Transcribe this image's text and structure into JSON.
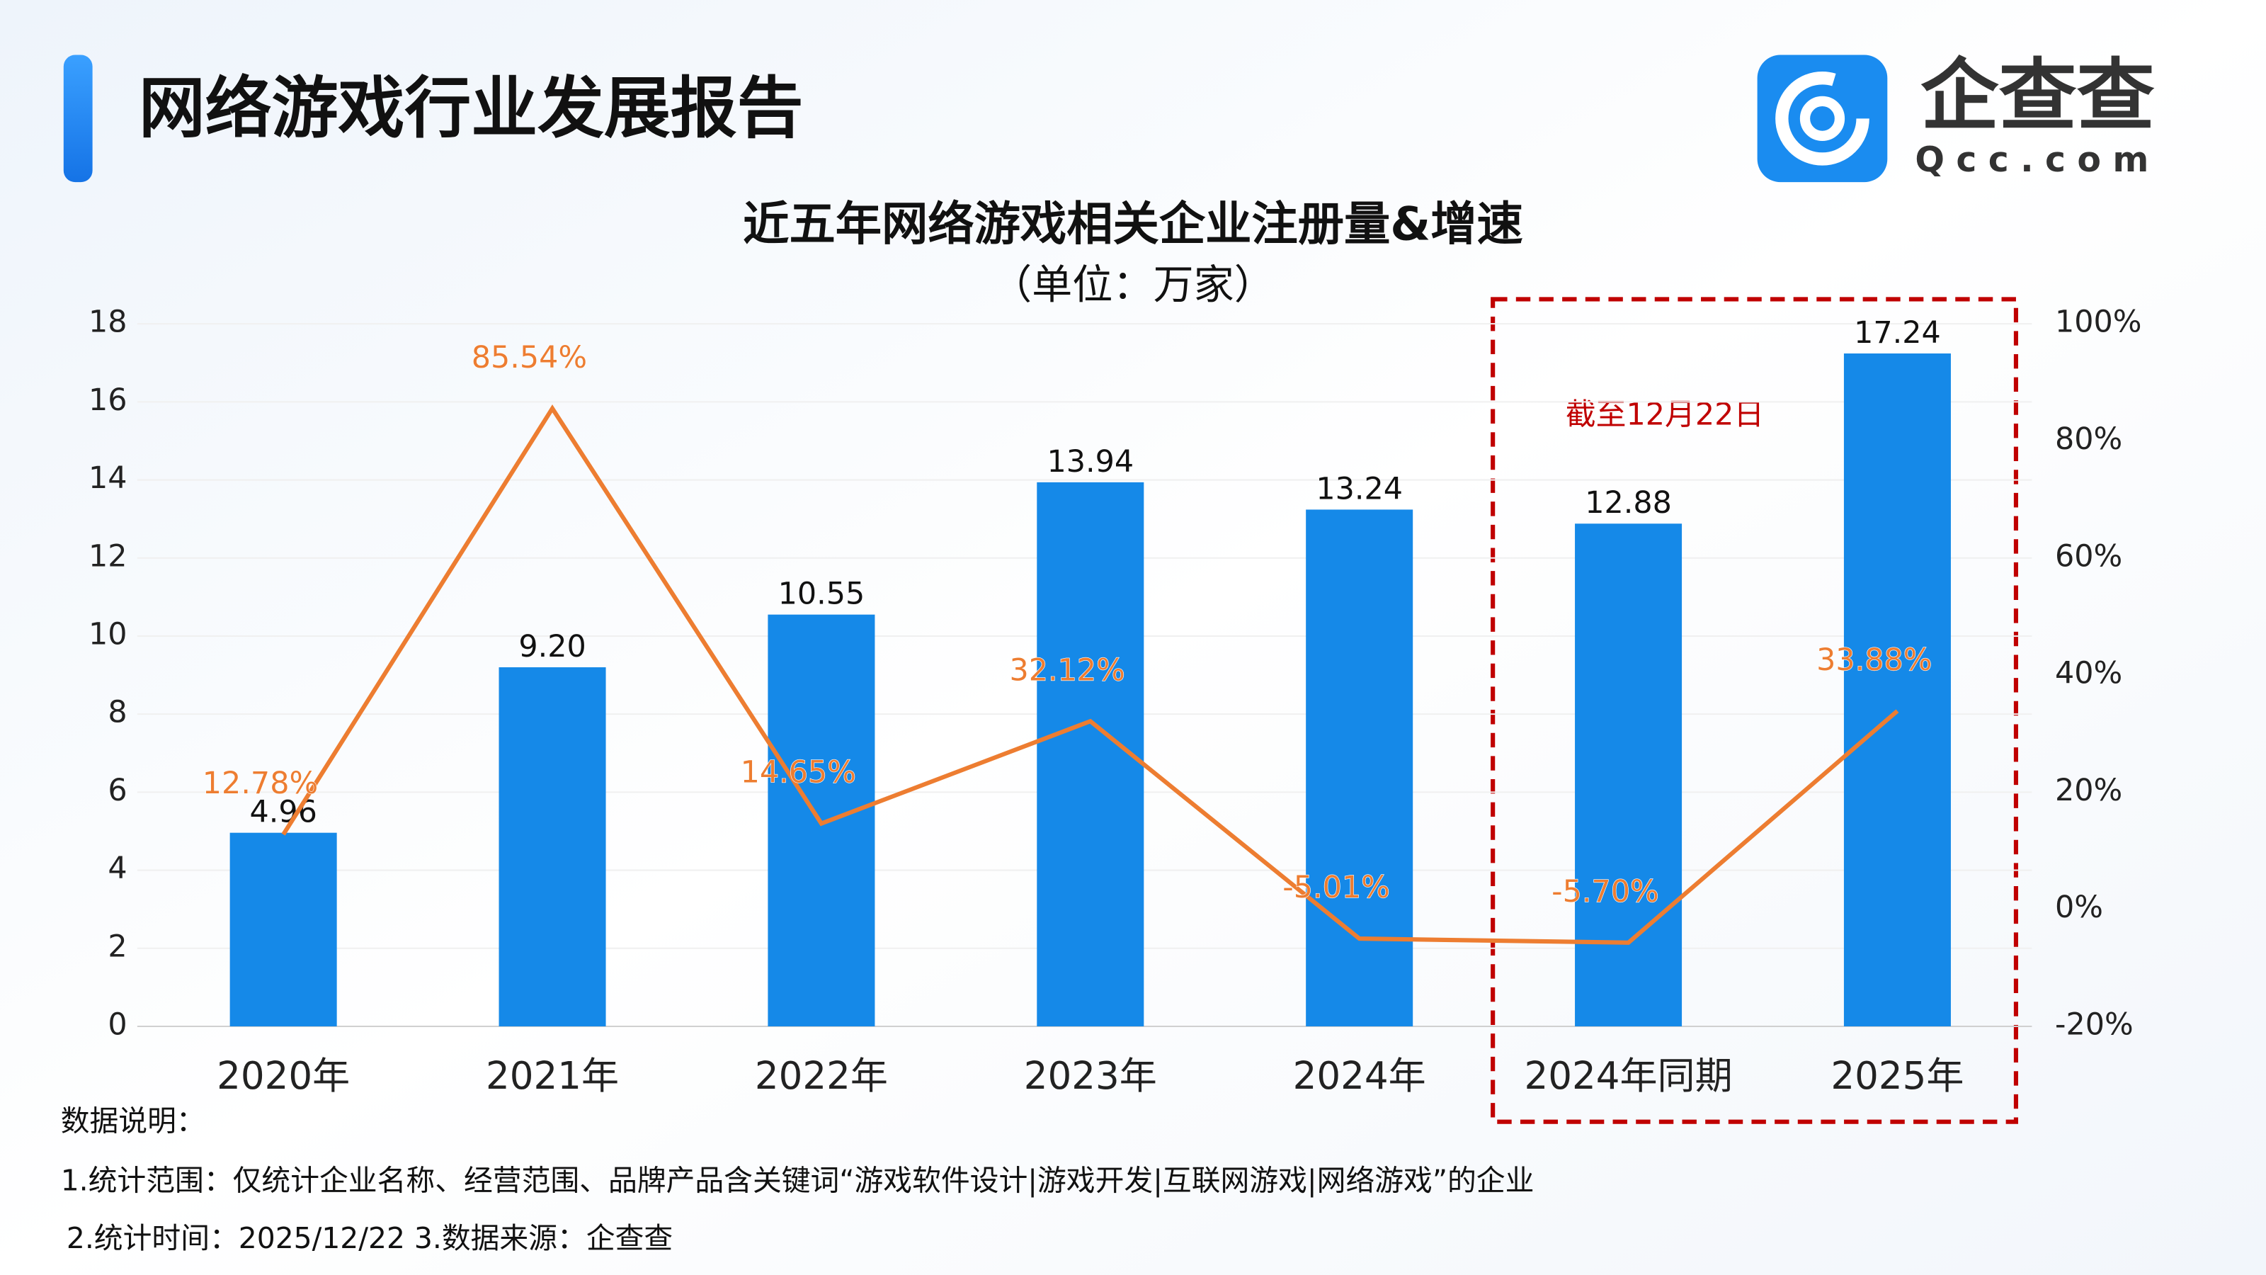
{
  "header": {
    "title": "网络游戏行业发展报告"
  },
  "logo": {
    "name": "企查查",
    "domain": "Qcc.com"
  },
  "chart_data": {
    "type": "bar_line",
    "title": "近五年网络游戏相关企业注册量&增速",
    "subtitle": "（单位：万家）",
    "annotation": "截至12月22日",
    "categories": [
      "2020年",
      "2021年",
      "2022年",
      "2023年",
      "2024年",
      "2024年同期",
      "2025年"
    ],
    "series": [
      {
        "type": "bar",
        "color": "#1589e8",
        "values": [
          4.96,
          9.2,
          10.55,
          13.94,
          13.24,
          12.88,
          17.24
        ],
        "value_labels": [
          "4.96",
          "9.20",
          "10.55",
          "13.94",
          "13.24",
          "12.88",
          "17.24"
        ]
      },
      {
        "type": "line",
        "axis": "y2",
        "color": "#ed7d31",
        "values": [
          12.78,
          85.54,
          14.65,
          32.12,
          -5.01,
          -5.7,
          33.88
        ],
        "value_labels": [
          "12.78%",
          "85.54%",
          "14.65%",
          "32.12%",
          "-5.01%",
          "-5.70%",
          "33.88%"
        ]
      }
    ],
    "ylim": [
      0,
      18
    ],
    "yticks": [
      0,
      2,
      4,
      6,
      8,
      10,
      12,
      14,
      16,
      18
    ],
    "y2lim": [
      -20,
      100
    ],
    "y2ticks": [
      {
        "value": -20,
        "label": "-20%"
      },
      {
        "value": 0,
        "label": "0%"
      },
      {
        "value": 20,
        "label": "20%"
      },
      {
        "value": 40,
        "label": "40%"
      },
      {
        "value": 60,
        "label": "60%"
      },
      {
        "value": 80,
        "label": "80%"
      },
      {
        "value": 100,
        "label": "100%"
      }
    ],
    "grid": true
  },
  "notes": {
    "heading": "数据说明：",
    "lines": [
      "1.统计范围：仅统计企业名称、经营范围、品牌产品含关键词“游戏软件设计|游戏开发|互联网游戏|网络游戏”的企业",
      "2.统计时间：2025/12/22 3.数据来源：企查查"
    ]
  }
}
